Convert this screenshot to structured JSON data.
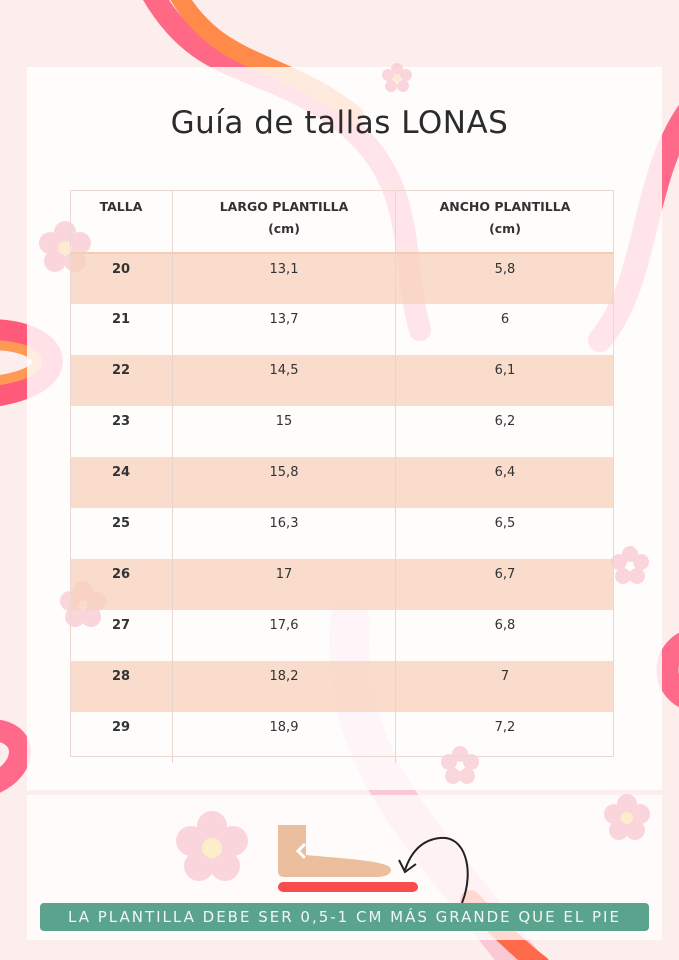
{
  "title": "Guía de tallas LONAS",
  "table": {
    "headers": [
      {
        "line1": "TALLA",
        "line2": ""
      },
      {
        "line1": "LARGO PLANTILLA",
        "line2": "(cm)"
      },
      {
        "line1": "ANCHO PLANTILLA",
        "line2": "(cm)"
      }
    ],
    "rows": [
      [
        "20",
        "13,1",
        "5,8"
      ],
      [
        "21",
        "13,7",
        "6"
      ],
      [
        "22",
        "14,5",
        "6,1"
      ],
      [
        "23",
        "15",
        "6,2"
      ],
      [
        "24",
        "15,8",
        "6,4"
      ],
      [
        "25",
        "16,3",
        "6,5"
      ],
      [
        "26",
        "17",
        "6,7"
      ],
      [
        "27",
        "17,6",
        "6,8"
      ],
      [
        "28",
        "18,2",
        "7"
      ],
      [
        "29",
        "18,9",
        "7,2"
      ]
    ]
  },
  "note": "LA PLANTILLA DEBE SER 0,5-1 CM MÁS GRANDE QUE EL PIE",
  "icons": [
    "flower-icon",
    "foot-icon",
    "insole-bar",
    "curved-arrow-icon"
  ],
  "colors": {
    "banner": "#5aa38d",
    "row_highlight": "#f7d2bc",
    "insole": "#f94c4c",
    "foot": "#e9b894",
    "background": "#fdeeee"
  }
}
